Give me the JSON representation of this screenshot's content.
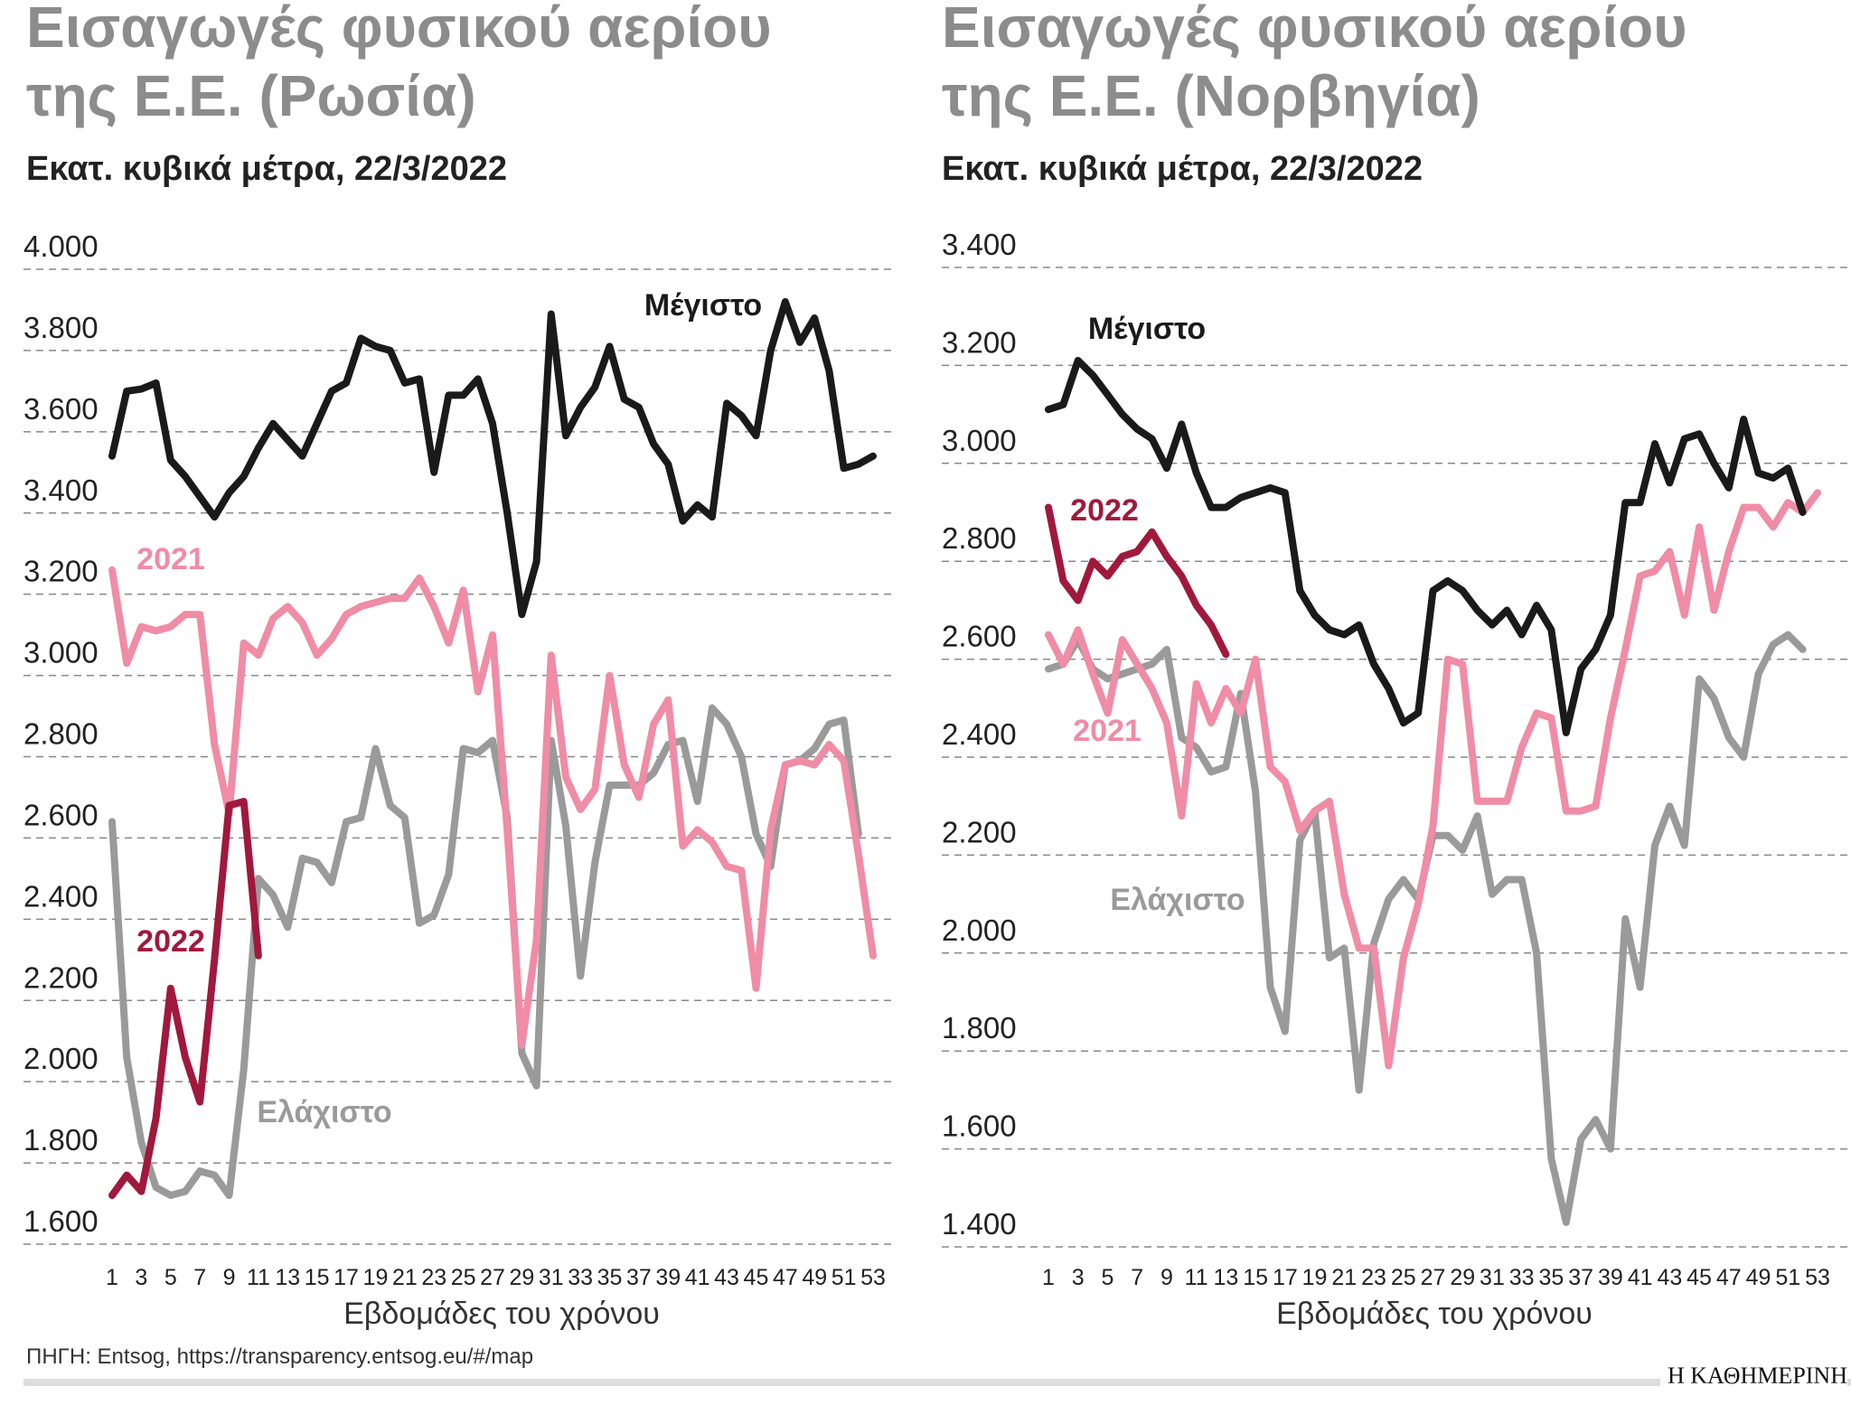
{
  "chart_data": [
    {
      "type": "line",
      "title": "Εισαγωγές φυσικού αερίου της Ε.Ε. (Ρωσία)",
      "subtitle": "Εκατ. κυβικά μέτρα, 22/3/2022",
      "x_label": "Εβδομάδες του χρόνου",
      "x": [
        1,
        2,
        3,
        4,
        5,
        6,
        7,
        8,
        9,
        10,
        11,
        12,
        13,
        14,
        15,
        16,
        17,
        18,
        19,
        20,
        21,
        22,
        23,
        24,
        25,
        26,
        27,
        28,
        29,
        30,
        31,
        32,
        33,
        34,
        35,
        36,
        37,
        38,
        39,
        40,
        41,
        42,
        43,
        44,
        45,
        46,
        47,
        48,
        49,
        50,
        51,
        52,
        53
      ],
      "xlim": [
        1,
        53
      ],
      "xticks": [
        1,
        3,
        5,
        7,
        9,
        11,
        13,
        15,
        17,
        19,
        21,
        23,
        25,
        27,
        29,
        31,
        33,
        35,
        37,
        39,
        41,
        43,
        45,
        47,
        49,
        51,
        53
      ],
      "ylim": [
        1600,
        4000
      ],
      "yticks": [
        {
          "value": 1600,
          "label": "1.600"
        },
        {
          "value": 1800,
          "label": "1.800"
        },
        {
          "value": 2000,
          "label": "2.000"
        },
        {
          "value": 2200,
          "label": "2.200"
        },
        {
          "value": 2400,
          "label": "2.400"
        },
        {
          "value": 2600,
          "label": "2.600"
        },
        {
          "value": 2800,
          "label": "2.800"
        },
        {
          "value": 3000,
          "label": "3.000"
        },
        {
          "value": 3200,
          "label": "3.200"
        },
        {
          "value": 3400,
          "label": "3.400"
        },
        {
          "value": 3600,
          "label": "3.600"
        },
        {
          "value": 3800,
          "label": "3.800"
        },
        {
          "value": 4000,
          "label": "4.000"
        }
      ],
      "grid": true,
      "series": [
        {
          "name": "Ελάχιστο",
          "color": "#9a9a9a",
          "values": [
            2640,
            2060,
            1850,
            1740,
            1720,
            1730,
            1780,
            1770,
            1720,
            2030,
            2500,
            2460,
            2380,
            2550,
            2540,
            2490,
            2640,
            2650,
            2820,
            2680,
            2650,
            2390,
            2410,
            2510,
            2820,
            2810,
            2840,
            2650,
            2070,
            1990,
            2840,
            2630,
            2260,
            2540,
            2730,
            2730,
            2730,
            2760,
            2830,
            2840,
            2690,
            2920,
            2880,
            2800,
            2610,
            2530,
            2780,
            2790,
            2820,
            2880,
            2890,
            2610,
            null
          ]
        },
        {
          "name": "2021",
          "color": "#f08ca5",
          "values": [
            3260,
            3030,
            3120,
            3110,
            3120,
            3150,
            3150,
            2830,
            2660,
            3080,
            3050,
            3140,
            3170,
            3130,
            3050,
            3090,
            3150,
            3170,
            3180,
            3190,
            3190,
            3240,
            3170,
            3080,
            3210,
            2960,
            3100,
            2620,
            2090,
            2350,
            3050,
            2750,
            2670,
            2720,
            3000,
            2780,
            2700,
            2880,
            2940,
            2580,
            2620,
            2590,
            2530,
            2520,
            2230,
            2620,
            2780,
            2790,
            2780,
            2830,
            2790,
            2560,
            2310
          ]
        },
        {
          "name": "Μέγιστο",
          "color": "#1a1a1a",
          "values": [
            3540,
            3700,
            3705,
            3720,
            3530,
            3490,
            3440,
            3390,
            3450,
            3490,
            3560,
            3620,
            3580,
            3540,
            3620,
            3700,
            3720,
            3830,
            3810,
            3800,
            3720,
            3730,
            3500,
            3690,
            3690,
            3730,
            3620,
            3400,
            3150,
            3280,
            3890,
            3590,
            3660,
            3710,
            3810,
            3680,
            3660,
            3570,
            3520,
            3380,
            3420,
            3390,
            3670,
            3640,
            3590,
            3800,
            3920,
            3820,
            3880,
            3750,
            3510,
            3520,
            3540
          ]
        },
        {
          "name": "2022",
          "color": "#a0193c",
          "values": [
            1720,
            1770,
            1730,
            1910,
            2230,
            2060,
            1950,
            2300,
            2680,
            2690,
            2310,
            null,
            null,
            null,
            null,
            null,
            null,
            null,
            null,
            null,
            null,
            null,
            null,
            null,
            null,
            null,
            null,
            null,
            null,
            null,
            null,
            null,
            null,
            null,
            null,
            null,
            null,
            null,
            null,
            null,
            null,
            null,
            null,
            null,
            null,
            null,
            null,
            null,
            null,
            null,
            null,
            null,
            null
          ]
        }
      ]
    },
    {
      "type": "line",
      "title": "Εισαγωγές φυσικού αερίου της Ε.Ε. (Νορβηγία)",
      "subtitle": "Εκατ. κυβικά μέτρα, 22/3/2022",
      "x_label": "Εβδομάδες του χρόνου",
      "x": [
        1,
        2,
        3,
        4,
        5,
        6,
        7,
        8,
        9,
        10,
        11,
        12,
        13,
        14,
        15,
        16,
        17,
        18,
        19,
        20,
        21,
        22,
        23,
        24,
        25,
        26,
        27,
        28,
        29,
        30,
        31,
        32,
        33,
        34,
        35,
        36,
        37,
        38,
        39,
        40,
        41,
        42,
        43,
        44,
        45,
        46,
        47,
        48,
        49,
        50,
        51,
        52,
        53
      ],
      "xlim": [
        1,
        53
      ],
      "xticks": [
        1,
        3,
        5,
        7,
        9,
        11,
        13,
        15,
        17,
        19,
        21,
        23,
        25,
        27,
        29,
        31,
        33,
        35,
        37,
        39,
        41,
        43,
        45,
        47,
        49,
        51,
        53
      ],
      "ylim": [
        1400,
        3400
      ],
      "yticks": [
        {
          "value": 1400,
          "label": "1.400"
        },
        {
          "value": 1600,
          "label": "1.600"
        },
        {
          "value": 1800,
          "label": "1.800"
        },
        {
          "value": 2000,
          "label": "2.000"
        },
        {
          "value": 2200,
          "label": "2.200"
        },
        {
          "value": 2400,
          "label": "2.400"
        },
        {
          "value": 2600,
          "label": "2.600"
        },
        {
          "value": 2800,
          "label": "2.800"
        },
        {
          "value": 3000,
          "label": "3.000"
        },
        {
          "value": 3200,
          "label": "3.200"
        },
        {
          "value": 3400,
          "label": "3.400"
        }
      ],
      "grid": true,
      "series": [
        {
          "name": "Ελάχιστο",
          "color": "#9a9a9a",
          "values": [
            2580,
            2590,
            2640,
            2580,
            2560,
            2570,
            2580,
            2590,
            2620,
            2440,
            2420,
            2370,
            2380,
            2530,
            2330,
            1930,
            1840,
            2230,
            2290,
            1990,
            2010,
            1720,
            2020,
            2110,
            2150,
            2110,
            2240,
            2240,
            2210,
            2280,
            2120,
            2150,
            2150,
            2000,
            1580,
            1450,
            1620,
            1660,
            1600,
            2070,
            1930,
            2220,
            2300,
            2220,
            2560,
            2520,
            2440,
            2400,
            2570,
            2630,
            2650,
            2620,
            null
          ]
        },
        {
          "name": "2021",
          "color": "#f08ca5",
          "values": [
            2650,
            2590,
            2660,
            2570,
            2490,
            2640,
            2590,
            2540,
            2470,
            2280,
            2550,
            2470,
            2540,
            2490,
            2600,
            2380,
            2350,
            2250,
            2290,
            2310,
            2120,
            2010,
            2010,
            1770,
            1990,
            2100,
            2260,
            2600,
            2590,
            2310,
            2310,
            2310,
            2420,
            2490,
            2480,
            2290,
            2290,
            2300,
            2480,
            2620,
            2770,
            2780,
            2820,
            2690,
            2870,
            2700,
            2820,
            2910,
            2910,
            2870,
            2920,
            2900,
            2940
          ]
        },
        {
          "name": "Μέγιστο",
          "color": "#1a1a1a",
          "values": [
            3110,
            3120,
            3210,
            3180,
            3140,
            3100,
            3070,
            3050,
            2990,
            3080,
            2980,
            2910,
            2910,
            2930,
            2940,
            2950,
            2940,
            2740,
            2690,
            2660,
            2650,
            2670,
            2590,
            2540,
            2470,
            2490,
            2740,
            2760,
            2740,
            2700,
            2670,
            2700,
            2650,
            2710,
            2660,
            2450,
            2580,
            2620,
            2690,
            2920,
            2920,
            3040,
            2960,
            3050,
            3060,
            3000,
            2950,
            3090,
            2980,
            2970,
            2990,
            2900,
            null
          ]
        },
        {
          "name": "2022",
          "color": "#a0193c",
          "values": [
            2910,
            2760,
            2720,
            2800,
            2770,
            2810,
            2820,
            2860,
            2810,
            2770,
            2710,
            2670,
            2610,
            null,
            null,
            null,
            null,
            null,
            null,
            null,
            null,
            null,
            null,
            null,
            null,
            null,
            null,
            null,
            null,
            null,
            null,
            null,
            null,
            null,
            null,
            null,
            null,
            null,
            null,
            null,
            null,
            null,
            null,
            null,
            null,
            null,
            null,
            null,
            null,
            null,
            null,
            null,
            null
          ]
        }
      ]
    }
  ],
  "source": "ΠΗΓΗ: Entsog, https://transparency.entsog.eu/#/map",
  "brand": "Η ΚΑΘΗΜΕΡΙΝΗ"
}
